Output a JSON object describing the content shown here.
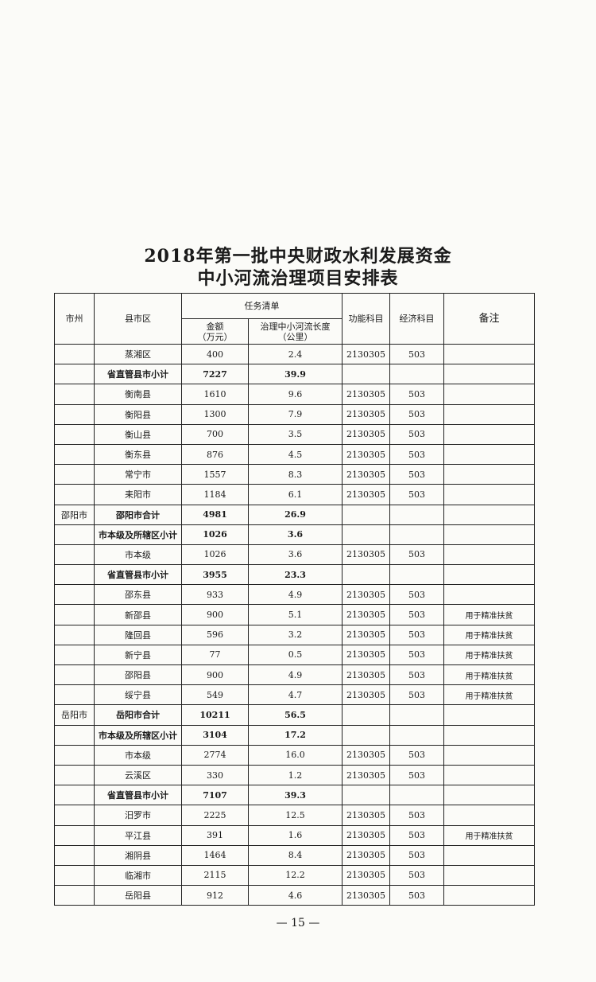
{
  "header": {
    "title_line1": "2018年第一批中央财政水利发展资金",
    "title_line2": "中小河流治理项目安排表"
  },
  "table": {
    "columns": {
      "city": "市州",
      "county": "县市区",
      "task": "任务清单",
      "amount": "金额\n（万元）",
      "length": "治理中小河流长度\n（公里）",
      "func": "功能科目",
      "econ": "经济科目",
      "note": "备注"
    },
    "rows": [
      {
        "county": "蒸湘区",
        "amount": "400",
        "length": "2.4",
        "func": "2130305",
        "econ": "503"
      },
      {
        "county": "省直管县市小计",
        "amount": "7227",
        "length": "39.9",
        "bold": true
      },
      {
        "county": "衡南县",
        "amount": "1610",
        "length": "9.6",
        "func": "2130305",
        "econ": "503"
      },
      {
        "county": "衡阳县",
        "amount": "1300",
        "length": "7.9",
        "func": "2130305",
        "econ": "503"
      },
      {
        "county": "衡山县",
        "amount": "700",
        "length": "3.5",
        "func": "2130305",
        "econ": "503"
      },
      {
        "county": "衡东县",
        "amount": "876",
        "length": "4.5",
        "func": "2130305",
        "econ": "503"
      },
      {
        "county": "常宁市",
        "amount": "1557",
        "length": "8.3",
        "func": "2130305",
        "econ": "503"
      },
      {
        "county": "耒阳市",
        "amount": "1184",
        "length": "6.1",
        "func": "2130305",
        "econ": "503"
      },
      {
        "city": "邵阳市",
        "county": "邵阳市合计",
        "amount": "4981",
        "length": "26.9",
        "bold": true
      },
      {
        "county": "市本级及所辖区小计",
        "amount": "1026",
        "length": "3.6",
        "bold": true
      },
      {
        "county": "市本级",
        "amount": "1026",
        "length": "3.6",
        "func": "2130305",
        "econ": "503"
      },
      {
        "county": "省直管县市小计",
        "amount": "3955",
        "length": "23.3",
        "bold": true
      },
      {
        "county": "邵东县",
        "amount": "933",
        "length": "4.9",
        "func": "2130305",
        "econ": "503"
      },
      {
        "county": "新邵县",
        "amount": "900",
        "length": "5.1",
        "func": "2130305",
        "econ": "503",
        "note": "用于精准扶贫"
      },
      {
        "county": "隆回县",
        "amount": "596",
        "length": "3.2",
        "func": "2130305",
        "econ": "503",
        "note": "用于精准扶贫"
      },
      {
        "county": "新宁县",
        "amount": "77",
        "length": "0.5",
        "func": "2130305",
        "econ": "503",
        "note": "用于精准扶贫"
      },
      {
        "county": "邵阳县",
        "amount": "900",
        "length": "4.9",
        "func": "2130305",
        "econ": "503",
        "note": "用于精准扶贫"
      },
      {
        "county": "绥宁县",
        "amount": "549",
        "length": "4.7",
        "func": "2130305",
        "econ": "503",
        "note": "用于精准扶贫"
      },
      {
        "city": "岳阳市",
        "county": "岳阳市合计",
        "amount": "10211",
        "length": "56.5",
        "bold": true
      },
      {
        "county": "市本级及所辖区小计",
        "amount": "3104",
        "length": "17.2",
        "bold": true
      },
      {
        "county": "市本级",
        "amount": "2774",
        "length": "16.0",
        "func": "2130305",
        "econ": "503"
      },
      {
        "county": "云溪区",
        "amount": "330",
        "length": "1.2",
        "func": "2130305",
        "econ": "503"
      },
      {
        "county": "省直管县市小计",
        "amount": "7107",
        "length": "39.3",
        "bold": true
      },
      {
        "county": "汨罗市",
        "amount": "2225",
        "length": "12.5",
        "func": "2130305",
        "econ": "503"
      },
      {
        "county": "平江县",
        "amount": "391",
        "length": "1.6",
        "func": "2130305",
        "econ": "503",
        "note": "用于精准扶贫"
      },
      {
        "county": "湘阴县",
        "amount": "1464",
        "length": "8.4",
        "func": "2130305",
        "econ": "503"
      },
      {
        "county": "临湘市",
        "amount": "2115",
        "length": "12.2",
        "func": "2130305",
        "econ": "503"
      },
      {
        "county": "岳阳县",
        "amount": "912",
        "length": "4.6",
        "func": "2130305",
        "econ": "503"
      }
    ]
  },
  "footer": {
    "page_number": "— 15 —"
  }
}
